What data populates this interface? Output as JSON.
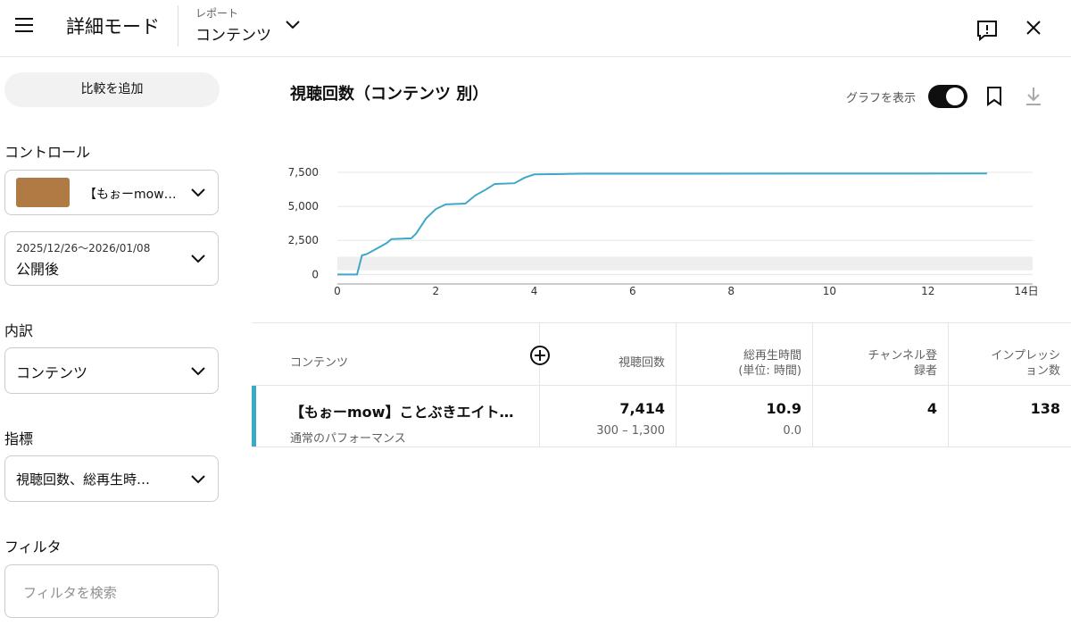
{
  "header": {
    "title": "詳細モード",
    "report_label": "レポート",
    "report_name": "コンテンツ"
  },
  "sidebar": {
    "compare_button": "比較を追加",
    "controls_label": "コントロール",
    "content_select": "【もぉーmow…",
    "date_range": "2025/12/26〜2026/01/08",
    "date_preset": "公開後",
    "breakdown_label": "内訳",
    "breakdown_select": "コンテンツ",
    "metrics_label": "指標",
    "metrics_select": "視聴回数、総再生時…",
    "filter_label": "フィルタ",
    "filter_placeholder": "フィルタを検索"
  },
  "chart_data": {
    "type": "line",
    "title": "視聴回数（コンテンツ 別）",
    "toggle_label": "グラフを表示",
    "x": [
      0,
      0.4,
      0.5,
      0.6,
      0.8,
      1.0,
      1.1,
      1.5,
      1.6,
      1.8,
      2.0,
      2.2,
      2.6,
      2.8,
      3.0,
      3.2,
      3.6,
      3.8,
      4.0,
      4.6,
      5.0,
      13.2
    ],
    "series": [
      {
        "color": "#3ea8c8",
        "values": [
          0,
          0,
          1400,
          1500,
          1900,
          2300,
          2600,
          2650,
          3000,
          4100,
          4800,
          5150,
          5200,
          5800,
          6200,
          6650,
          6700,
          7100,
          7350,
          7380,
          7400,
          7414
        ]
      }
    ],
    "band": {
      "low": 300,
      "high": 1300,
      "color": "#eeeeee"
    },
    "xlim": [
      0,
      14
    ],
    "xticks": [
      0,
      2,
      4,
      6,
      8,
      10,
      12,
      {
        "value": 14,
        "label": "14日"
      }
    ],
    "ylim": [
      -700,
      7500
    ],
    "yticks": [
      0,
      {
        "value": 2500,
        "label": "2,500"
      },
      {
        "value": 5000,
        "label": "5,000"
      },
      {
        "value": 7500,
        "label": "7,500"
      }
    ],
    "grid": true
  },
  "table": {
    "headers": [
      "コンテンツ",
      "視聴回数",
      "総再生時間\n(単位: 時間)",
      "チャンネル登\n録者",
      "インプレッシ\nョン数"
    ],
    "rows": [
      {
        "title": "【もぉーmow】ことぶきエイト…",
        "subtitle": "通常のパフォーマンス",
        "cells": [
          "7,414",
          "10.9",
          "4",
          "138"
        ],
        "subcells": [
          "300 – 1,300",
          "0.0"
        ]
      }
    ]
  }
}
